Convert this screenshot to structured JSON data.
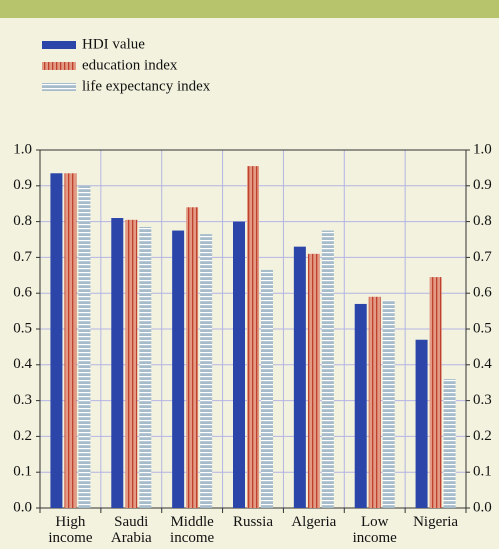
{
  "chart_data": {
    "type": "bar",
    "categories": [
      "High income",
      "Saudi Arabia",
      "Middle income",
      "Russia",
      "Algeria",
      "Low income",
      "Nigeria"
    ],
    "series": [
      {
        "name": "HDI value",
        "color": "#2c45a8",
        "values": [
          0.935,
          0.81,
          0.775,
          0.8,
          0.73,
          0.57,
          0.47
        ]
      },
      {
        "name": "education index",
        "color": "#e29a84",
        "values": [
          0.935,
          0.805,
          0.84,
          0.955,
          0.71,
          0.59,
          0.645
        ]
      },
      {
        "name": "life expectancy index",
        "color": "#a6bccb",
        "values": [
          0.9,
          0.785,
          0.765,
          0.665,
          0.775,
          0.58,
          0.36
        ]
      }
    ],
    "ylim": [
      0,
      1
    ],
    "yticks": [
      {
        "value": 0,
        "label": "0.0"
      },
      0.1,
      0.2,
      0.3,
      0.4,
      0.5,
      0.6,
      0.7,
      0.8,
      0.9,
      {
        "value": 1,
        "label": "1.0"
      }
    ],
    "grid": true
  }
}
